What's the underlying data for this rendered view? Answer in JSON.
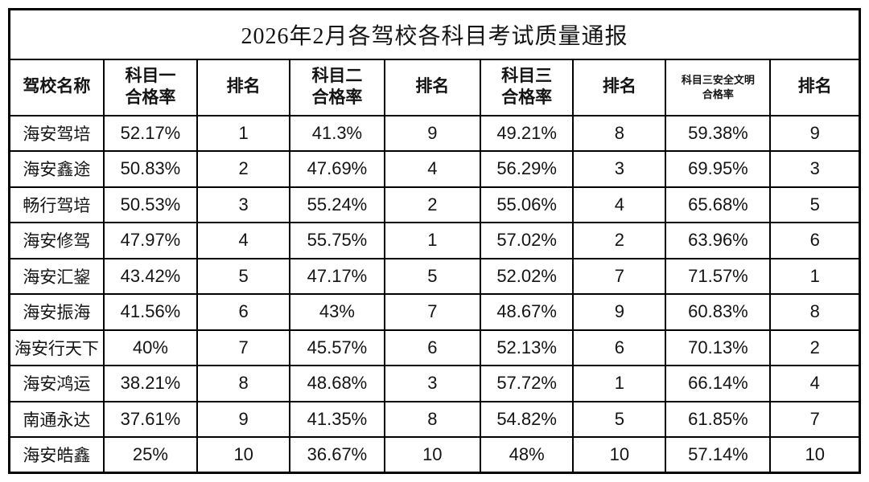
{
  "title": "2026年2月各驾校各科目考试质量通报",
  "columns": [
    {
      "label": "驾校名称",
      "small": false
    },
    {
      "label": "科目一\n合格率",
      "small": false
    },
    {
      "label": "排名",
      "small": false
    },
    {
      "label": "科目二\n合格率",
      "small": false
    },
    {
      "label": "排名",
      "small": false
    },
    {
      "label": "科目三\n合格率",
      "small": false
    },
    {
      "label": "排名",
      "small": false
    },
    {
      "label": "科目三安全文明\n合格率",
      "small": true
    },
    {
      "label": "排名",
      "small": false
    }
  ],
  "rows": [
    {
      "school": "海安驾培",
      "values": [
        "52.17%",
        "1",
        "41.3%",
        "9",
        "49.21%",
        "8",
        "59.38%",
        "9"
      ]
    },
    {
      "school": "海安鑫途",
      "values": [
        "50.83%",
        "2",
        "47.69%",
        "4",
        "56.29%",
        "3",
        "69.95%",
        "3"
      ]
    },
    {
      "school": "畅行驾培",
      "values": [
        "50.53%",
        "3",
        "55.24%",
        "2",
        "55.06%",
        "4",
        "65.68%",
        "5"
      ]
    },
    {
      "school": "海安修驾",
      "values": [
        "47.97%",
        "4",
        "55.75%",
        "1",
        "57.02%",
        "2",
        "63.96%",
        "6"
      ]
    },
    {
      "school": "海安汇鋆",
      "values": [
        "43.42%",
        "5",
        "47.17%",
        "5",
        "52.02%",
        "7",
        "71.57%",
        "1"
      ]
    },
    {
      "school": "海安振海",
      "values": [
        "41.56%",
        "6",
        "43%",
        "7",
        "48.67%",
        "9",
        "60.83%",
        "8"
      ]
    },
    {
      "school": "海安行天下",
      "values": [
        "40%",
        "7",
        "45.57%",
        "6",
        "52.13%",
        "6",
        "70.13%",
        "2"
      ]
    },
    {
      "school": "海安鸿运",
      "values": [
        "38.21%",
        "8",
        "48.68%",
        "3",
        "57.72%",
        "1",
        "66.14%",
        "4"
      ]
    },
    {
      "school": "南通永达",
      "values": [
        "37.61%",
        "9",
        "41.35%",
        "8",
        "54.82%",
        "5",
        "61.85%",
        "7"
      ]
    },
    {
      "school": "海安皓鑫",
      "values": [
        "25%",
        "10",
        "36.67%",
        "10",
        "48%",
        "10",
        "57.14%",
        "10"
      ]
    }
  ],
  "colors": {
    "border": "#000000",
    "text": "#141414",
    "background": "#ffffff"
  }
}
